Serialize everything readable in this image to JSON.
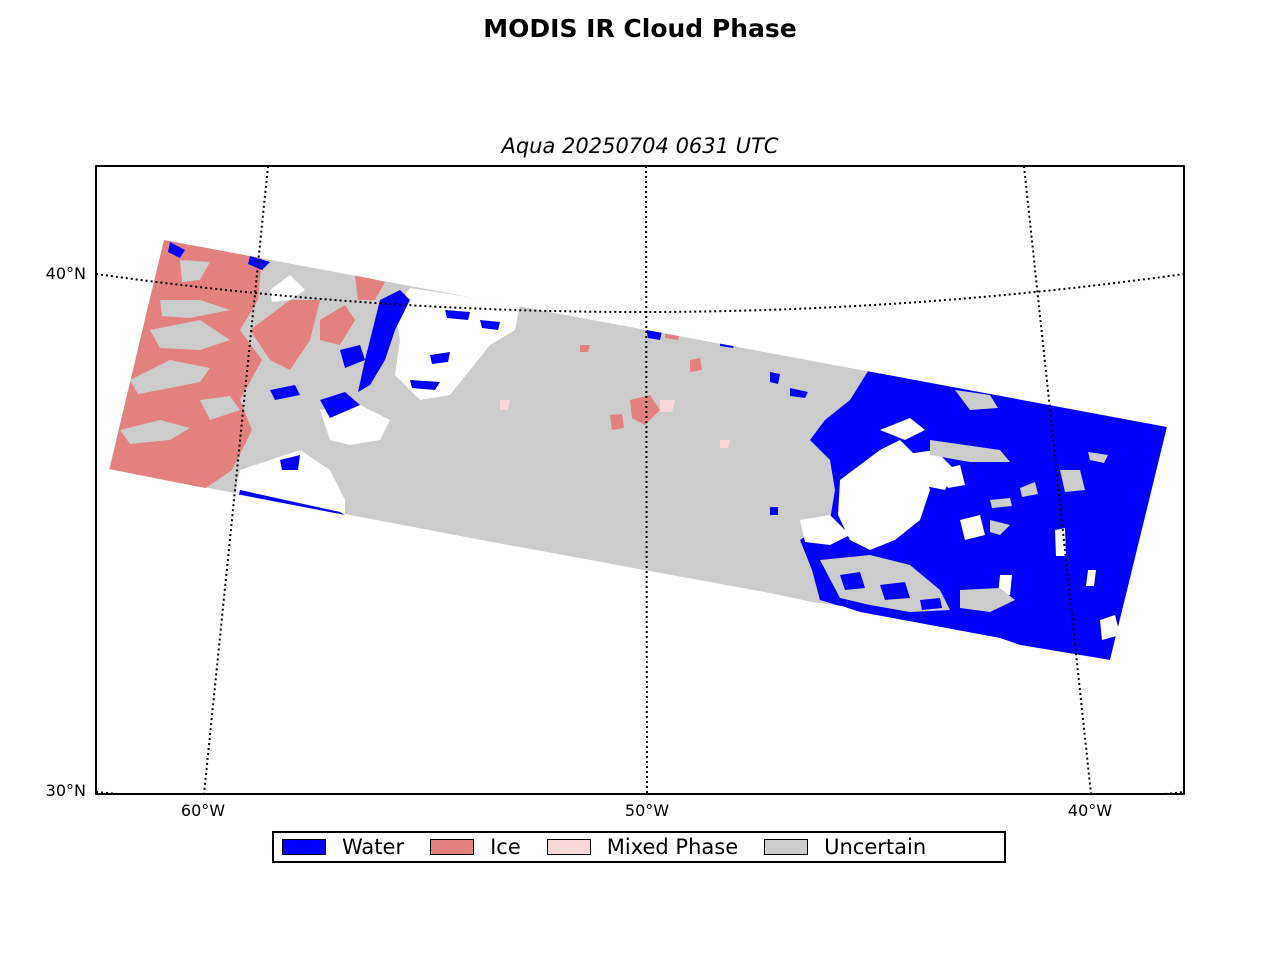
{
  "title": "MODIS IR Cloud Phase",
  "subtitle": "Aqua 20250704 0631 UTC",
  "lat_labels": [
    "40°N",
    "30°N"
  ],
  "lon_labels": [
    "60°W",
    "50°W",
    "40°W"
  ],
  "legend": [
    {
      "label": "Water",
      "color": "#0000ff"
    },
    {
      "label": "Ice",
      "color": "#e38080"
    },
    {
      "label": "Mixed Phase",
      "color": "#f8d8d8"
    },
    {
      "label": "Uncertain",
      "color": "#cccccc"
    }
  ],
  "colors": {
    "water": "#0000ff",
    "ice": "#e38080",
    "mixed": "#f8d8d8",
    "uncertain": "#cccccc",
    "clear": "#ffffff"
  }
}
